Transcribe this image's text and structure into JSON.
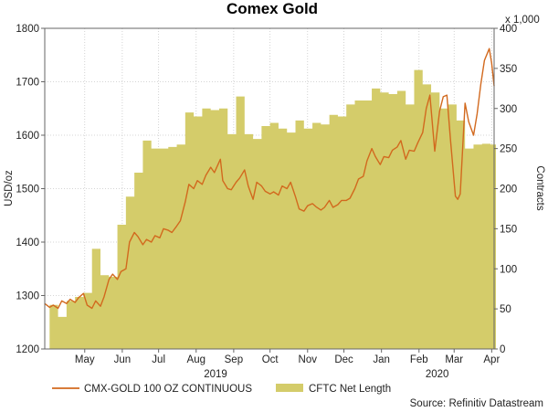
{
  "chart_data": {
    "type": "line+area",
    "title": "Comex Gold",
    "source_label": "Source: Refinitiv Datastream",
    "left_axis": {
      "label": "USD/oz",
      "ylim": [
        1200,
        1800
      ],
      "ticks": [
        "1200",
        "1300",
        "1400",
        "1500",
        "1600",
        "1700",
        "1800"
      ]
    },
    "right_axis": {
      "label": "Contracts",
      "multiplier_label": "x 1,000",
      "ylim": [
        0,
        400
      ],
      "ticks": [
        "0",
        "50",
        "100",
        "150",
        "200",
        "250",
        "300",
        "350",
        "400"
      ]
    },
    "x_axis": {
      "start": "2019-04-12",
      "end": "2020-04-17",
      "month_labels": [
        {
          "label": "May",
          "date": "2019-05-15"
        },
        {
          "label": "Jun",
          "date": "2019-06-15"
        },
        {
          "label": "Jul",
          "date": "2019-07-15"
        },
        {
          "label": "Aug",
          "date": "2019-08-15"
        },
        {
          "label": "Sep",
          "date": "2019-09-15"
        },
        {
          "label": "Oct",
          "date": "2019-10-15"
        },
        {
          "label": "Nov",
          "date": "2019-11-15"
        },
        {
          "label": "Dec",
          "date": "2019-12-15"
        },
        {
          "label": "Jan",
          "date": "2020-01-15"
        },
        {
          "label": "Feb",
          "date": "2020-02-15"
        },
        {
          "label": "Mar",
          "date": "2020-03-15"
        },
        {
          "label": "Apr",
          "date": "2020-04-15"
        }
      ],
      "year_labels": [
        {
          "label": "2019",
          "date": "2019-08-31"
        },
        {
          "label": "2020",
          "date": "2020-03-01"
        }
      ]
    },
    "grid": true,
    "legend_position": "bottom-left",
    "series": [
      {
        "name": "CMX-GOLD 100 OZ CONTINUOUS",
        "type": "line",
        "axis": "left",
        "color": "#d2691e",
        "points": [
          [
            "2019-04-12",
            1285
          ],
          [
            "2019-04-16",
            1278
          ],
          [
            "2019-04-19",
            1282
          ],
          [
            "2019-04-23",
            1276
          ],
          [
            "2019-04-26",
            1290
          ],
          [
            "2019-04-30",
            1285
          ],
          [
            "2019-05-03",
            1293
          ],
          [
            "2019-05-07",
            1287
          ],
          [
            "2019-05-10",
            1296
          ],
          [
            "2019-05-14",
            1304
          ],
          [
            "2019-05-17",
            1282
          ],
          [
            "2019-05-21",
            1276
          ],
          [
            "2019-05-24",
            1290
          ],
          [
            "2019-05-28",
            1280
          ],
          [
            "2019-05-31",
            1298
          ],
          [
            "2019-06-04",
            1330
          ],
          [
            "2019-06-07",
            1340
          ],
          [
            "2019-06-11",
            1330
          ],
          [
            "2019-06-14",
            1345
          ],
          [
            "2019-06-18",
            1350
          ],
          [
            "2019-06-21",
            1400
          ],
          [
            "2019-06-25",
            1418
          ],
          [
            "2019-06-28",
            1410
          ],
          [
            "2019-07-02",
            1395
          ],
          [
            "2019-07-05",
            1405
          ],
          [
            "2019-07-09",
            1400
          ],
          [
            "2019-07-12",
            1412
          ],
          [
            "2019-07-16",
            1408
          ],
          [
            "2019-07-19",
            1425
          ],
          [
            "2019-07-23",
            1422
          ],
          [
            "2019-07-26",
            1418
          ],
          [
            "2019-07-30",
            1430
          ],
          [
            "2019-08-02",
            1440
          ],
          [
            "2019-08-06",
            1475
          ],
          [
            "2019-08-09",
            1508
          ],
          [
            "2019-08-13",
            1500
          ],
          [
            "2019-08-16",
            1515
          ],
          [
            "2019-08-20",
            1508
          ],
          [
            "2019-08-23",
            1525
          ],
          [
            "2019-08-27",
            1540
          ],
          [
            "2019-08-30",
            1530
          ],
          [
            "2019-09-04",
            1555
          ],
          [
            "2019-09-06",
            1515
          ],
          [
            "2019-09-10",
            1500
          ],
          [
            "2019-09-13",
            1498
          ],
          [
            "2019-09-17",
            1512
          ],
          [
            "2019-09-20",
            1520
          ],
          [
            "2019-09-24",
            1535
          ],
          [
            "2019-09-27",
            1505
          ],
          [
            "2019-10-01",
            1480
          ],
          [
            "2019-10-04",
            1512
          ],
          [
            "2019-10-08",
            1505
          ],
          [
            "2019-10-11",
            1495
          ],
          [
            "2019-10-15",
            1490
          ],
          [
            "2019-10-18",
            1494
          ],
          [
            "2019-10-22",
            1488
          ],
          [
            "2019-10-25",
            1505
          ],
          [
            "2019-10-29",
            1500
          ],
          [
            "2019-11-01",
            1512
          ],
          [
            "2019-11-05",
            1485
          ],
          [
            "2019-11-08",
            1462
          ],
          [
            "2019-11-12",
            1458
          ],
          [
            "2019-11-15",
            1468
          ],
          [
            "2019-11-19",
            1472
          ],
          [
            "2019-11-22",
            1466
          ],
          [
            "2019-11-26",
            1460
          ],
          [
            "2019-11-29",
            1465
          ],
          [
            "2019-12-03",
            1478
          ],
          [
            "2019-12-06",
            1465
          ],
          [
            "2019-12-10",
            1470
          ],
          [
            "2019-12-13",
            1478
          ],
          [
            "2019-12-17",
            1478
          ],
          [
            "2019-12-20",
            1482
          ],
          [
            "2019-12-24",
            1500
          ],
          [
            "2019-12-27",
            1518
          ],
          [
            "2019-12-31",
            1523
          ],
          [
            "2020-01-03",
            1552
          ],
          [
            "2020-01-07",
            1575
          ],
          [
            "2020-01-10",
            1560
          ],
          [
            "2020-01-14",
            1545
          ],
          [
            "2020-01-17",
            1560
          ],
          [
            "2020-01-21",
            1558
          ],
          [
            "2020-01-24",
            1572
          ],
          [
            "2020-01-28",
            1578
          ],
          [
            "2020-01-31",
            1590
          ],
          [
            "2020-02-04",
            1555
          ],
          [
            "2020-02-07",
            1572
          ],
          [
            "2020-02-11",
            1570
          ],
          [
            "2020-02-14",
            1586
          ],
          [
            "2020-02-18",
            1605
          ],
          [
            "2020-02-21",
            1650
          ],
          [
            "2020-02-24",
            1675
          ],
          [
            "2020-02-28",
            1570
          ],
          [
            "2020-03-03",
            1645
          ],
          [
            "2020-03-06",
            1672
          ],
          [
            "2020-03-09",
            1675
          ],
          [
            "2020-03-12",
            1590
          ],
          [
            "2020-03-16",
            1486
          ],
          [
            "2020-03-18",
            1480
          ],
          [
            "2020-03-20",
            1490
          ],
          [
            "2020-03-24",
            1660
          ],
          [
            "2020-03-27",
            1625
          ],
          [
            "2020-03-31",
            1600
          ],
          [
            "2020-04-03",
            1640
          ],
          [
            "2020-04-06",
            1695
          ],
          [
            "2020-04-09",
            1740
          ],
          [
            "2020-04-13",
            1762
          ],
          [
            "2020-04-15",
            1735
          ],
          [
            "2020-04-17",
            1692
          ]
        ]
      },
      {
        "name": "CFTC Net Length",
        "type": "area",
        "axis": "right",
        "color": "#d4cc6a",
        "points": [
          [
            "2019-04-16",
            55
          ],
          [
            "2019-04-23",
            40
          ],
          [
            "2019-04-30",
            60
          ],
          [
            "2019-05-07",
            65
          ],
          [
            "2019-05-14",
            70
          ],
          [
            "2019-05-21",
            125
          ],
          [
            "2019-05-28",
            92
          ],
          [
            "2019-06-04",
            90
          ],
          [
            "2019-06-11",
            155
          ],
          [
            "2019-06-18",
            190
          ],
          [
            "2019-06-25",
            220
          ],
          [
            "2019-07-02",
            260
          ],
          [
            "2019-07-09",
            250
          ],
          [
            "2019-07-16",
            250
          ],
          [
            "2019-07-23",
            252
          ],
          [
            "2019-07-30",
            255
          ],
          [
            "2019-08-06",
            295
          ],
          [
            "2019-08-13",
            290
          ],
          [
            "2019-08-20",
            300
          ],
          [
            "2019-08-27",
            298
          ],
          [
            "2019-09-03",
            300
          ],
          [
            "2019-09-10",
            268
          ],
          [
            "2019-09-17",
            315
          ],
          [
            "2019-09-24",
            268
          ],
          [
            "2019-10-01",
            262
          ],
          [
            "2019-10-08",
            278
          ],
          [
            "2019-10-15",
            282
          ],
          [
            "2019-10-22",
            275
          ],
          [
            "2019-10-29",
            270
          ],
          [
            "2019-11-05",
            285
          ],
          [
            "2019-11-12",
            275
          ],
          [
            "2019-11-19",
            282
          ],
          [
            "2019-11-26",
            280
          ],
          [
            "2019-12-03",
            292
          ],
          [
            "2019-12-10",
            290
          ],
          [
            "2019-12-17",
            305
          ],
          [
            "2019-12-24",
            310
          ],
          [
            "2019-12-31",
            310
          ],
          [
            "2020-01-07",
            325
          ],
          [
            "2020-01-14",
            320
          ],
          [
            "2020-01-21",
            318
          ],
          [
            "2020-01-28",
            322
          ],
          [
            "2020-02-04",
            305
          ],
          [
            "2020-02-11",
            348
          ],
          [
            "2020-02-18",
            330
          ],
          [
            "2020-02-25",
            320
          ],
          [
            "2020-03-03",
            300
          ],
          [
            "2020-03-10",
            305
          ],
          [
            "2020-03-17",
            285
          ],
          [
            "2020-03-24",
            250
          ],
          [
            "2020-03-31",
            255
          ],
          [
            "2020-04-07",
            256
          ],
          [
            "2020-04-14",
            255
          ]
        ]
      }
    ]
  }
}
